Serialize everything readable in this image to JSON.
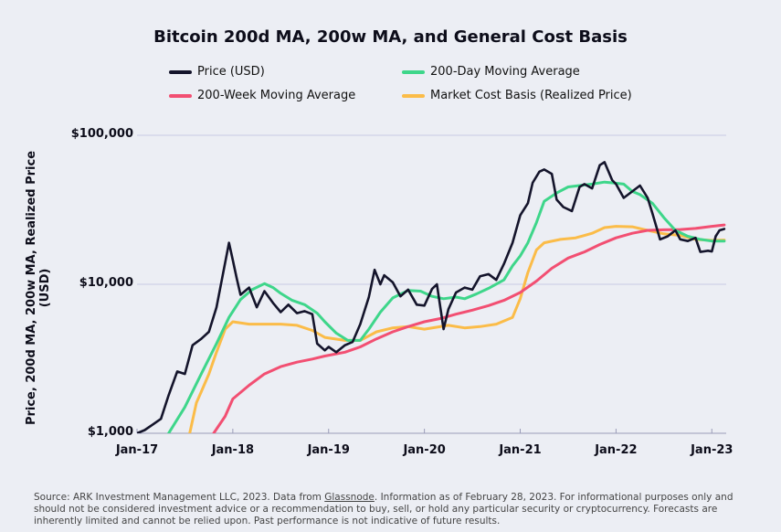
{
  "chart_data": {
    "type": "line",
    "title": "Bitcoin 200d MA, 200w MA, and General Cost Basis",
    "ylabel": "Price, 200d MA, 200w MA, Realized Price (USD)",
    "y_scale": "log",
    "ylim": [
      1000,
      100000
    ],
    "yticks": [
      {
        "value": 1000,
        "label": "$1,000"
      },
      {
        "value": 10000,
        "label": "$10,000"
      },
      {
        "value": 100000,
        "label": "$100,000"
      }
    ],
    "xlim": [
      2017.0,
      2023.15
    ],
    "xticks": [
      {
        "value": 2017,
        "label": "Jan-17"
      },
      {
        "value": 2018,
        "label": "Jan-18"
      },
      {
        "value": 2019,
        "label": "Jan-19"
      },
      {
        "value": 2020,
        "label": "Jan-20"
      },
      {
        "value": 2021,
        "label": "Jan-21"
      },
      {
        "value": 2022,
        "label": "Jan-22"
      },
      {
        "value": 2023,
        "label": "Jan-23"
      }
    ],
    "grid": "horizontal",
    "legend_position": "top",
    "series": [
      {
        "name": "Price (USD)",
        "color": "#14142b",
        "points": [
          [
            2017.0,
            1000
          ],
          [
            2017.08,
            1050
          ],
          [
            2017.17,
            1150
          ],
          [
            2017.25,
            1250
          ],
          [
            2017.33,
            1800
          ],
          [
            2017.42,
            2600
          ],
          [
            2017.5,
            2500
          ],
          [
            2017.58,
            3900
          ],
          [
            2017.67,
            4300
          ],
          [
            2017.75,
            4800
          ],
          [
            2017.83,
            7000
          ],
          [
            2017.92,
            14000
          ],
          [
            2017.96,
            19000
          ],
          [
            2018.0,
            14500
          ],
          [
            2018.04,
            11000
          ],
          [
            2018.08,
            8500
          ],
          [
            2018.17,
            9500
          ],
          [
            2018.25,
            7000
          ],
          [
            2018.33,
            9000
          ],
          [
            2018.42,
            7500
          ],
          [
            2018.5,
            6500
          ],
          [
            2018.58,
            7300
          ],
          [
            2018.67,
            6400
          ],
          [
            2018.75,
            6600
          ],
          [
            2018.83,
            6300
          ],
          [
            2018.88,
            4000
          ],
          [
            2018.96,
            3600
          ],
          [
            2019.0,
            3800
          ],
          [
            2019.08,
            3500
          ],
          [
            2019.17,
            3900
          ],
          [
            2019.25,
            4100
          ],
          [
            2019.33,
            5400
          ],
          [
            2019.42,
            8200
          ],
          [
            2019.48,
            12500
          ],
          [
            2019.54,
            10000
          ],
          [
            2019.58,
            11500
          ],
          [
            2019.67,
            10300
          ],
          [
            2019.75,
            8300
          ],
          [
            2019.83,
            9200
          ],
          [
            2019.92,
            7300
          ],
          [
            2020.0,
            7200
          ],
          [
            2020.08,
            9300
          ],
          [
            2020.13,
            10000
          ],
          [
            2020.2,
            5000
          ],
          [
            2020.25,
            6800
          ],
          [
            2020.33,
            8800
          ],
          [
            2020.42,
            9500
          ],
          [
            2020.5,
            9200
          ],
          [
            2020.58,
            11300
          ],
          [
            2020.67,
            11700
          ],
          [
            2020.75,
            10700
          ],
          [
            2020.83,
            13700
          ],
          [
            2020.92,
            19000
          ],
          [
            2021.0,
            29000
          ],
          [
            2021.08,
            35000
          ],
          [
            2021.13,
            48000
          ],
          [
            2021.2,
            57000
          ],
          [
            2021.25,
            59000
          ],
          [
            2021.33,
            55000
          ],
          [
            2021.38,
            37000
          ],
          [
            2021.45,
            33000
          ],
          [
            2021.54,
            31000
          ],
          [
            2021.62,
            45000
          ],
          [
            2021.67,
            47000
          ],
          [
            2021.75,
            44000
          ],
          [
            2021.83,
            63000
          ],
          [
            2021.88,
            66000
          ],
          [
            2021.96,
            50000
          ],
          [
            2022.0,
            47000
          ],
          [
            2022.08,
            38000
          ],
          [
            2022.17,
            42000
          ],
          [
            2022.25,
            46000
          ],
          [
            2022.33,
            38000
          ],
          [
            2022.38,
            30000
          ],
          [
            2022.46,
            20000
          ],
          [
            2022.54,
            21000
          ],
          [
            2022.62,
            23000
          ],
          [
            2022.67,
            20000
          ],
          [
            2022.75,
            19500
          ],
          [
            2022.83,
            20500
          ],
          [
            2022.88,
            16500
          ],
          [
            2022.96,
            16800
          ],
          [
            2023.0,
            16600
          ],
          [
            2023.04,
            21000
          ],
          [
            2023.08,
            23000
          ],
          [
            2023.13,
            23500
          ]
        ]
      },
      {
        "name": "200-Day Moving Average",
        "color": "#3ed68a",
        "points": [
          [
            2017.33,
            1000
          ],
          [
            2017.5,
            1500
          ],
          [
            2017.67,
            2500
          ],
          [
            2017.83,
            4000
          ],
          [
            2017.96,
            6000
          ],
          [
            2018.08,
            7900
          ],
          [
            2018.2,
            9200
          ],
          [
            2018.33,
            10100
          ],
          [
            2018.42,
            9500
          ],
          [
            2018.5,
            8700
          ],
          [
            2018.62,
            7800
          ],
          [
            2018.75,
            7300
          ],
          [
            2018.88,
            6400
          ],
          [
            2018.96,
            5600
          ],
          [
            2019.08,
            4700
          ],
          [
            2019.2,
            4200
          ],
          [
            2019.33,
            4200
          ],
          [
            2019.42,
            5000
          ],
          [
            2019.54,
            6500
          ],
          [
            2019.67,
            8100
          ],
          [
            2019.83,
            9100
          ],
          [
            2019.96,
            9000
          ],
          [
            2020.08,
            8300
          ],
          [
            2020.2,
            8000
          ],
          [
            2020.33,
            8200
          ],
          [
            2020.42,
            8000
          ],
          [
            2020.54,
            8600
          ],
          [
            2020.67,
            9400
          ],
          [
            2020.83,
            10700
          ],
          [
            2020.92,
            13300
          ],
          [
            2021.0,
            15500
          ],
          [
            2021.08,
            19000
          ],
          [
            2021.17,
            26000
          ],
          [
            2021.25,
            36000
          ],
          [
            2021.38,
            41000
          ],
          [
            2021.5,
            45000
          ],
          [
            2021.62,
            46000
          ],
          [
            2021.75,
            47000
          ],
          [
            2021.88,
            48500
          ],
          [
            2021.96,
            48000
          ],
          [
            2022.08,
            47000
          ],
          [
            2022.17,
            42000
          ],
          [
            2022.25,
            40000
          ],
          [
            2022.38,
            35000
          ],
          [
            2022.5,
            28000
          ],
          [
            2022.62,
            23000
          ],
          [
            2022.75,
            21000
          ],
          [
            2022.88,
            20000
          ],
          [
            2023.0,
            19500
          ],
          [
            2023.13,
            19500
          ]
        ]
      },
      {
        "name": "200-Week Moving Average",
        "color": "#f24f72",
        "points": [
          [
            2017.8,
            1000
          ],
          [
            2017.92,
            1300
          ],
          [
            2018.0,
            1700
          ],
          [
            2018.17,
            2100
          ],
          [
            2018.33,
            2500
          ],
          [
            2018.5,
            2800
          ],
          [
            2018.67,
            3000
          ],
          [
            2018.83,
            3150
          ],
          [
            2018.96,
            3300
          ],
          [
            2019.17,
            3500
          ],
          [
            2019.33,
            3800
          ],
          [
            2019.5,
            4300
          ],
          [
            2019.67,
            4800
          ],
          [
            2019.83,
            5200
          ],
          [
            2020.0,
            5600
          ],
          [
            2020.17,
            5900
          ],
          [
            2020.33,
            6300
          ],
          [
            2020.5,
            6700
          ],
          [
            2020.67,
            7200
          ],
          [
            2020.83,
            7800
          ],
          [
            2021.0,
            8800
          ],
          [
            2021.17,
            10500
          ],
          [
            2021.33,
            12800
          ],
          [
            2021.5,
            15000
          ],
          [
            2021.67,
            16500
          ],
          [
            2021.83,
            18500
          ],
          [
            2022.0,
            20500
          ],
          [
            2022.17,
            22000
          ],
          [
            2022.33,
            23000
          ],
          [
            2022.5,
            23200
          ],
          [
            2022.67,
            23300
          ],
          [
            2022.83,
            23700
          ],
          [
            2023.0,
            24500
          ],
          [
            2023.13,
            25000
          ]
        ]
      },
      {
        "name": "Market Cost Basis (Realized Price)",
        "color": "#fbbc48",
        "points": [
          [
            2017.55,
            1000
          ],
          [
            2017.62,
            1600
          ],
          [
            2017.67,
            1900
          ],
          [
            2017.75,
            2500
          ],
          [
            2017.83,
            3500
          ],
          [
            2017.92,
            5000
          ],
          [
            2018.0,
            5600
          ],
          [
            2018.17,
            5400
          ],
          [
            2018.33,
            5400
          ],
          [
            2018.5,
            5400
          ],
          [
            2018.67,
            5300
          ],
          [
            2018.83,
            4900
          ],
          [
            2018.96,
            4400
          ],
          [
            2019.17,
            4200
          ],
          [
            2019.33,
            4200
          ],
          [
            2019.5,
            4800
          ],
          [
            2019.67,
            5100
          ],
          [
            2019.83,
            5200
          ],
          [
            2020.0,
            5000
          ],
          [
            2020.25,
            5300
          ],
          [
            2020.42,
            5100
          ],
          [
            2020.58,
            5200
          ],
          [
            2020.75,
            5400
          ],
          [
            2020.92,
            6000
          ],
          [
            2021.0,
            8000
          ],
          [
            2021.08,
            12000
          ],
          [
            2021.17,
            17000
          ],
          [
            2021.25,
            19000
          ],
          [
            2021.42,
            20000
          ],
          [
            2021.58,
            20500
          ],
          [
            2021.75,
            22000
          ],
          [
            2021.88,
            24000
          ],
          [
            2022.0,
            24500
          ],
          [
            2022.17,
            24300
          ],
          [
            2022.33,
            23000
          ],
          [
            2022.5,
            21800
          ],
          [
            2022.67,
            21300
          ],
          [
            2022.83,
            20000
          ],
          [
            2023.0,
            19700
          ],
          [
            2023.13,
            19800
          ]
        ]
      }
    ]
  },
  "source": {
    "prefix": "Source: ARK Investment Management LLC, 2023. Data from ",
    "link": "Glassnode",
    "suffix": ". Information as of February 28, 2023. For informational purposes only and should not be considered investment advice or a recommendation to buy, sell, or hold any particular security or cryptocurrency. Forecasts are inherently limited and cannot be relied upon. Past performance is not indicative of future results."
  }
}
